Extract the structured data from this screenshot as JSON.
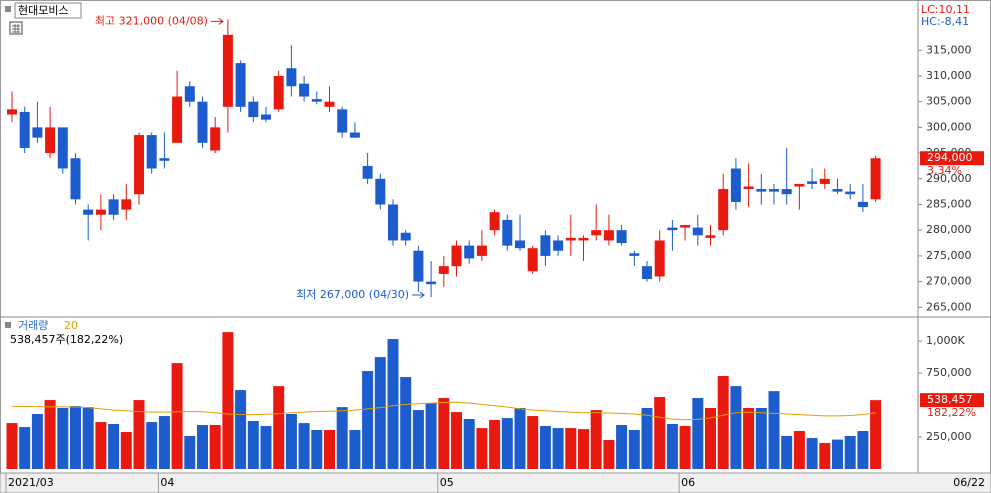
{
  "title": "현대모비스",
  "lc_label": "LC:10,11",
  "hc_label": "HC:-8,41",
  "chart_data": [
    {
      "type": "candlestick",
      "categories": [
        "2021/03",
        null,
        null,
        null,
        null,
        null,
        null,
        null,
        null,
        null,
        null,
        null,
        "04",
        null,
        null,
        null,
        null,
        null,
        null,
        null,
        null,
        null,
        null,
        null,
        null,
        null,
        null,
        null,
        null,
        null,
        null,
        null,
        null,
        null,
        "05",
        null,
        null,
        null,
        null,
        null,
        null,
        null,
        null,
        null,
        null,
        null,
        null,
        null,
        null,
        null,
        null,
        null,
        null,
        "06",
        null,
        null,
        null,
        null,
        null,
        null,
        null,
        null,
        null,
        null,
        null,
        null,
        null,
        null,
        null
      ],
      "open": [
        302500,
        303000,
        300000,
        295000,
        300000,
        294000,
        284000,
        283000,
        286000,
        284000,
        287000,
        298500,
        294000,
        297000,
        308000,
        305000,
        295500,
        304000,
        312500,
        305000,
        302500,
        303500,
        311500,
        308500,
        305500,
        304000,
        303500,
        299000,
        292500,
        290000,
        285000,
        279500,
        276000,
        270000,
        271500,
        273000,
        277000,
        275000,
        280000,
        282000,
        278000,
        272000,
        279000,
        278000,
        278000,
        278000,
        279000,
        278000,
        280000,
        275500,
        273000,
        271000,
        280500,
        280500,
        280500,
        278500,
        280000,
        292000,
        288000,
        288000,
        288000,
        288000,
        288500,
        289500,
        289000,
        288000,
        287500,
        285500,
        286000
      ],
      "high": [
        307000,
        304000,
        305000,
        304000,
        300000,
        295000,
        285000,
        287000,
        287000,
        289000,
        299000,
        299000,
        299000,
        311000,
        309000,
        306000,
        302000,
        321000,
        313000,
        306000,
        304000,
        311000,
        316000,
        310000,
        307000,
        308000,
        304000,
        301000,
        295000,
        291000,
        286000,
        280000,
        277000,
        274000,
        275000,
        278000,
        278000,
        280000,
        284000,
        283000,
        283000,
        277000,
        280000,
        279000,
        283000,
        279000,
        285000,
        283000,
        281000,
        276000,
        274000,
        280000,
        282000,
        281000,
        283000,
        281000,
        291000,
        294000,
        293000,
        291000,
        289000,
        296000,
        289000,
        292000,
        292000,
        290000,
        289000,
        289000,
        294500
      ],
      "low": [
        301000,
        295000,
        297000,
        294000,
        291000,
        285000,
        278000,
        280000,
        282000,
        282000,
        285000,
        291000,
        292000,
        297000,
        304000,
        296000,
        295000,
        299000,
        303000,
        301000,
        301000,
        303000,
        306000,
        305000,
        304500,
        303000,
        298000,
        298000,
        289000,
        284000,
        277000,
        277000,
        268000,
        267000,
        269000,
        271000,
        273500,
        274000,
        279000,
        276000,
        276000,
        271500,
        273000,
        275000,
        275000,
        274000,
        278000,
        277000,
        277000,
        273000,
        270000,
        270000,
        276000,
        278000,
        277000,
        277000,
        279000,
        284000,
        284500,
        285000,
        285000,
        285000,
        284000,
        288000,
        288000,
        287000,
        286000,
        283500,
        285500
      ],
      "close": [
        303500,
        296000,
        298000,
        300000,
        292000,
        286000,
        283000,
        284000,
        283000,
        286000,
        298500,
        292000,
        293500,
        306000,
        305000,
        297000,
        300000,
        318000,
        304000,
        302000,
        301500,
        310000,
        308000,
        306000,
        305000,
        305000,
        299000,
        298000,
        290000,
        285000,
        278000,
        278000,
        270000,
        269500,
        273000,
        277000,
        274500,
        277000,
        283500,
        277000,
        276500,
        276500,
        275000,
        276000,
        278500,
        278500,
        280000,
        280000,
        277500,
        275000,
        270500,
        278000,
        280000,
        281000,
        279000,
        279000,
        288000,
        285500,
        288500,
        287500,
        287500,
        287000,
        289000,
        289000,
        290000,
        287500,
        287000,
        284500,
        294000
      ],
      "up_color": "#e8190f",
      "down_color": "#1c5ccc",
      "ylim": [
        263500,
        324000
      ],
      "yticks": [
        {
          "value": 265000,
          "label": "265,000"
        },
        {
          "value": 270000,
          "label": "270,000"
        },
        {
          "value": 275000,
          "label": "275,000"
        },
        {
          "value": 280000,
          "label": "280,000"
        },
        {
          "value": 285000,
          "label": "285,000"
        },
        {
          "value": 290000,
          "label": "290,000"
        },
        {
          "value": 295000,
          "label": "295,000"
        },
        {
          "value": 300000,
          "label": "300,000"
        },
        {
          "value": 305000,
          "label": "305,000"
        },
        {
          "value": 310000,
          "label": "310,000"
        },
        {
          "value": 315000,
          "label": "315,000"
        }
      ],
      "high_label": "최고 321,000 (04/08)",
      "low_label": "최저 267,000 (04/30)",
      "last_price_label": "294,000",
      "change_label": "3,34%",
      "last_date": "06/22"
    },
    {
      "type": "bar",
      "name": "거래량",
      "ma_name": "20",
      "ma_color": "#e0a000",
      "values": [
        359000,
        328000,
        430000,
        539000,
        477000,
        492000,
        484000,
        367000,
        352000,
        289000,
        539000,
        367000,
        414000,
        828000,
        258000,
        344000,
        344000,
        1070000,
        617000,
        375000,
        336000,
        648000,
        430000,
        359000,
        305000,
        305000,
        484000,
        305000,
        766000,
        875000,
        1016000,
        719000,
        461000,
        516000,
        555000,
        445000,
        391000,
        320000,
        383000,
        398000,
        477000,
        414000,
        336000,
        320000,
        320000,
        312000,
        461000,
        227000,
        344000,
        305000,
        477000,
        563000,
        352000,
        336000,
        555000,
        477000,
        727000,
        648000,
        477000,
        477000,
        609000,
        258000,
        297000,
        242000,
        203000,
        230000,
        258000,
        297000,
        538457
      ],
      "ma_values": [
        490000,
        490000,
        488000,
        487000,
        486000,
        485000,
        480000,
        470000,
        460000,
        455000,
        450000,
        445000,
        445000,
        448000,
        450000,
        448000,
        440000,
        430000,
        425000,
        425000,
        428000,
        432000,
        440000,
        445000,
        450000,
        452000,
        455000,
        460000,
        470000,
        480000,
        495000,
        505000,
        510000,
        515000,
        520000,
        522000,
        515000,
        505000,
        495000,
        485000,
        470000,
        460000,
        455000,
        450000,
        445000,
        440000,
        440000,
        438000,
        435000,
        430000,
        420000,
        405000,
        390000,
        385000,
        388000,
        400000,
        420000,
        440000,
        445000,
        440000,
        435000,
        430000,
        425000,
        420000,
        415000,
        415000,
        418000,
        425000,
        440000
      ],
      "ylim": [
        0,
        1165000
      ],
      "yticks": [
        {
          "value": 250000,
          "label": "250,000"
        },
        {
          "value": 750000,
          "label": "750,000"
        },
        {
          "value": 1000000,
          "label": "1,000K"
        }
      ],
      "info_label": "538,457주(182,22%)",
      "last_value_label": "538,457",
      "ratio_label": "182,22%"
    }
  ]
}
